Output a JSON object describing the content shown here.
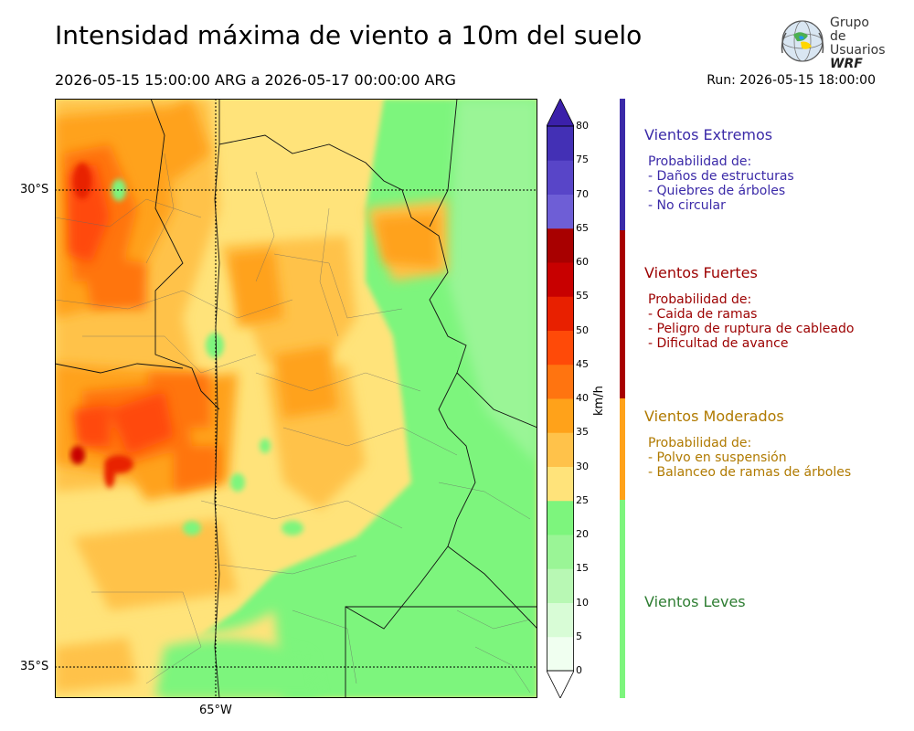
{
  "header": {
    "title": "Intensidad máxima de viento a 10m del suelo",
    "period": "2026-05-15 15:00:00 ARG  a  2026-05-17 00:00:00 ARG",
    "run": "Run: 2026-05-15 18:00:00"
  },
  "logo": {
    "line1": "Grupo de",
    "line2": "Usuarios",
    "line3": "WRF"
  },
  "map": {
    "lat_labels": [
      "30°S",
      "35°S"
    ],
    "lon_labels": [
      "65°W"
    ]
  },
  "colorbar": {
    "unit": "km/h",
    "ticks": [
      "0",
      "5",
      "10",
      "15",
      "20",
      "25",
      "30",
      "35",
      "40",
      "45",
      "50",
      "55",
      "60",
      "65",
      "70",
      "75",
      "80"
    ],
    "colors": [
      "#f0fff0",
      "#d8fcd6",
      "#b8f8b4",
      "#9af596",
      "#7df57d",
      "#ffe37a",
      "#ffc24a",
      "#ffa21a",
      "#ff7410",
      "#ff4a08",
      "#e82000",
      "#c80000",
      "#a80000",
      "#6e5ed6",
      "#5845c8",
      "#4330b5",
      "#3b20aa"
    ]
  },
  "categories": [
    {
      "title": "Vientos Extremos",
      "color": "#3b2aa8",
      "lines": [
        "Probabilidad de:",
        "- Daños de estructuras",
        "- Quiebres de árboles",
        "- No circular"
      ]
    },
    {
      "title": "Vientos Fuertes",
      "color": "#9c0000",
      "lines": [
        "Probabilidad de:",
        "- Caida de ramas",
        "- Peligro de ruptura de cableado",
        "- Dificultad de avance"
      ]
    },
    {
      "title": "Vientos Moderados",
      "color": "#b07a00",
      "lines": [
        "Probabilidad de:",
        "- Polvo en suspensión",
        "- Balanceo de ramas de árboles"
      ]
    },
    {
      "title": "Vientos Leves",
      "color": "#2e7d32",
      "lines": []
    }
  ]
}
